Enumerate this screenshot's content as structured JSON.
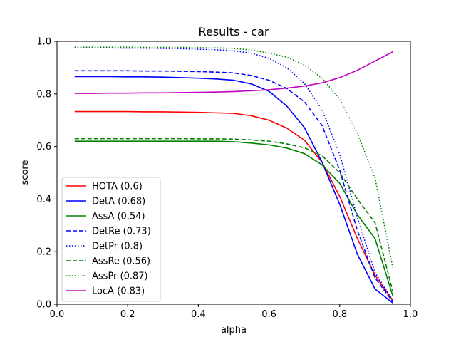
{
  "chart_data": {
    "type": "line",
    "title": "Results - car",
    "xlabel": "alpha",
    "ylabel": "score",
    "xlim": [
      0.0,
      1.0
    ],
    "ylim": [
      0.0,
      1.0
    ],
    "xticks": [
      "0.0",
      "0.2",
      "0.4",
      "0.6",
      "0.8",
      "1.0"
    ],
    "yticks": [
      "0.0",
      "0.2",
      "0.4",
      "0.6",
      "0.8",
      "1.0"
    ],
    "grid": false,
    "legend_position": "lower-left",
    "x": [
      0.05,
      0.1,
      0.15,
      0.2,
      0.25,
      0.3,
      0.35,
      0.4,
      0.45,
      0.5,
      0.55,
      0.6,
      0.65,
      0.7,
      0.75,
      0.8,
      0.85,
      0.9,
      0.95
    ],
    "series": [
      {
        "name": "HOTA (0.6)",
        "color": "#ff0000",
        "dash": "solid",
        "values": [
          0.733,
          0.733,
          0.733,
          0.733,
          0.732,
          0.732,
          0.731,
          0.73,
          0.728,
          0.726,
          0.717,
          0.7,
          0.67,
          0.624,
          0.54,
          0.41,
          0.25,
          0.11,
          0.015
        ]
      },
      {
        "name": "DetA (0.68)",
        "color": "#0000ff",
        "dash": "solid",
        "values": [
          0.866,
          0.866,
          0.866,
          0.865,
          0.865,
          0.864,
          0.862,
          0.86,
          0.857,
          0.852,
          0.838,
          0.81,
          0.754,
          0.672,
          0.54,
          0.38,
          0.19,
          0.058,
          0.005
        ]
      },
      {
        "name": "AssA (0.54)",
        "color": "#008000",
        "dash": "solid",
        "values": [
          0.62,
          0.62,
          0.62,
          0.62,
          0.62,
          0.62,
          0.62,
          0.62,
          0.62,
          0.618,
          0.613,
          0.606,
          0.594,
          0.573,
          0.53,
          0.46,
          0.34,
          0.25,
          0.032
        ]
      },
      {
        "name": "DetRe (0.73)",
        "color": "#0000ff",
        "dash": "dashed",
        "values": [
          0.888,
          0.888,
          0.888,
          0.888,
          0.887,
          0.887,
          0.886,
          0.885,
          0.883,
          0.88,
          0.87,
          0.852,
          0.821,
          0.77,
          0.68,
          0.51,
          0.28,
          0.1,
          0.01
        ]
      },
      {
        "name": "DetPr (0.8)",
        "color": "#0000ff",
        "dash": "dotted",
        "values": [
          0.975,
          0.975,
          0.975,
          0.974,
          0.974,
          0.973,
          0.972,
          0.97,
          0.968,
          0.964,
          0.955,
          0.935,
          0.9,
          0.84,
          0.74,
          0.57,
          0.33,
          0.12,
          0.015
        ]
      },
      {
        "name": "AssRe (0.56)",
        "color": "#008000",
        "dash": "dashed",
        "values": [
          0.63,
          0.63,
          0.63,
          0.63,
          0.63,
          0.63,
          0.63,
          0.629,
          0.629,
          0.628,
          0.625,
          0.62,
          0.61,
          0.595,
          0.565,
          0.5,
          0.4,
          0.31,
          0.05
        ]
      },
      {
        "name": "AssPr (0.87)",
        "color": "#008000",
        "dash": "dotted",
        "values": [
          0.978,
          0.978,
          0.978,
          0.978,
          0.977,
          0.977,
          0.977,
          0.976,
          0.975,
          0.973,
          0.967,
          0.955,
          0.94,
          0.91,
          0.86,
          0.78,
          0.65,
          0.48,
          0.14
        ]
      },
      {
        "name": "LocA (0.83)",
        "color": "#bf00bf",
        "dash": "solid",
        "values": [
          0.802,
          0.802,
          0.803,
          0.803,
          0.804,
          0.804,
          0.805,
          0.806,
          0.807,
          0.809,
          0.812,
          0.816,
          0.822,
          0.83,
          0.842,
          0.862,
          0.89,
          0.925,
          0.96
        ]
      }
    ]
  }
}
